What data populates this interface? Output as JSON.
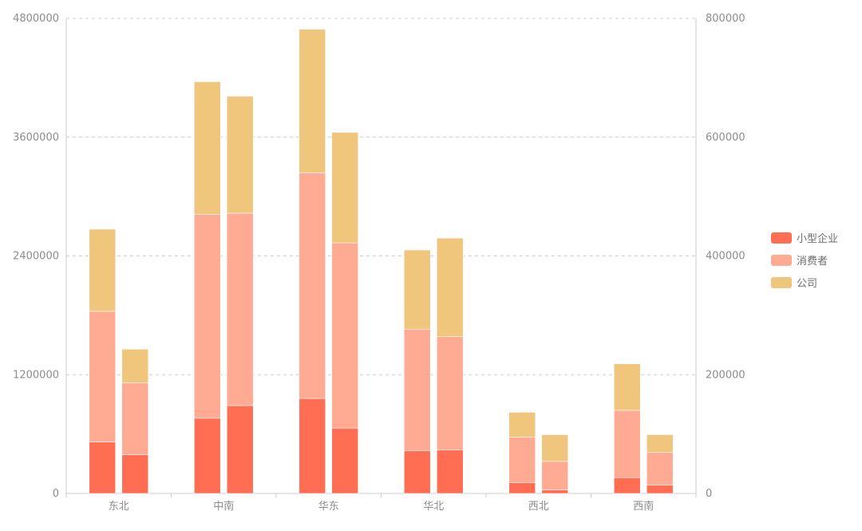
{
  "colors": {
    "small_business": "#ff6e52",
    "consumer": "#ffaa92",
    "corporate": "#f0c57c",
    "axis": "#cccccc",
    "grid": "#cccccc",
    "tick_text": "#8c8c8c"
  },
  "legend": {
    "items": [
      {
        "label": "小型企业",
        "color": "#ff6e52",
        "icon": "legend-swatch"
      },
      {
        "label": "消费者",
        "color": "#ffaa92",
        "icon": "legend-swatch"
      },
      {
        "label": "公司",
        "color": "#f0c57c",
        "icon": "legend-swatch"
      }
    ]
  },
  "chart_data": {
    "type": "bar",
    "stacked": true,
    "grouped_bars_per_category": 2,
    "categories": [
      "东北",
      "中南",
      "华东",
      "华北",
      "西北",
      "西南"
    ],
    "y_left": {
      "ticks": [
        "0",
        "1200000",
        "2400000",
        "3600000",
        "4800000"
      ],
      "range": [
        0,
        4800000
      ]
    },
    "y_right": {
      "ticks": [
        "0",
        "200000",
        "400000",
        "600000",
        "800000"
      ],
      "range": [
        0,
        800000
      ]
    },
    "grid": true,
    "legend_position": "right",
    "bars": [
      {
        "axis": "left",
        "series_values": {
          "小型企业": [
            520000,
            760000,
            960000,
            430000,
            110000,
            160000
          ],
          "消费者": [
            1320000,
            2060000,
            2280000,
            1230000,
            460000,
            680000
          ],
          "公司": [
            830000,
            1340000,
            1450000,
            800000,
            250000,
            470000
          ]
        }
      },
      {
        "axis": "right",
        "series_values": {
          "小型企业": [
            65000,
            148000,
            110000,
            73000,
            6000,
            14000
          ],
          "消费者": [
            121000,
            324000,
            312000,
            191000,
            48000,
            55000
          ],
          "公司": [
            57000,
            197000,
            186000,
            166000,
            45000,
            30000
          ]
        }
      }
    ],
    "series": [
      {
        "name": "小型企业",
        "color_key": "small_business"
      },
      {
        "name": "消费者",
        "color_key": "consumer"
      },
      {
        "name": "公司",
        "color_key": "corporate"
      }
    ]
  }
}
